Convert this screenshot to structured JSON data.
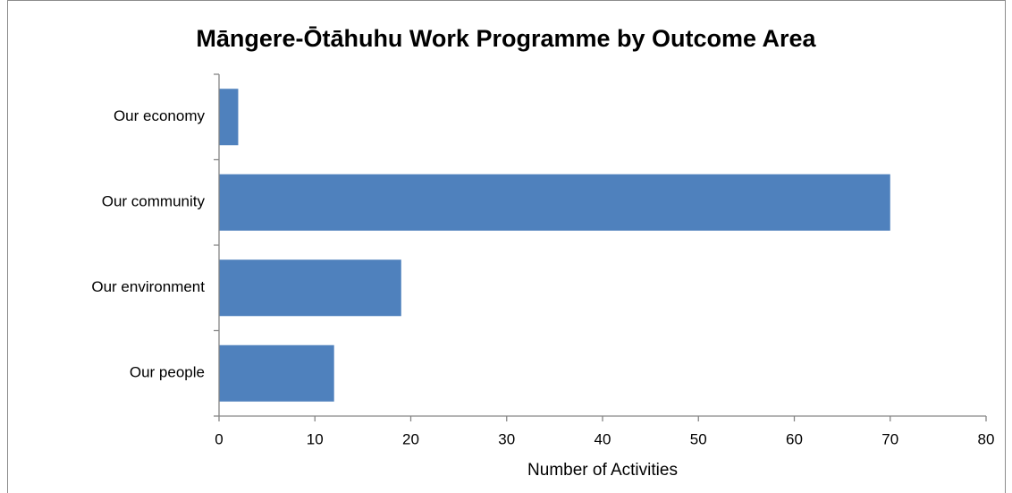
{
  "chart_data": {
    "type": "barh",
    "title": "Māngere-Ōtāhuhu Work Programme by Outcome Area",
    "categories": [
      "Our economy",
      "Our community",
      "Our environment",
      "Our people"
    ],
    "values": [
      2,
      70,
      19,
      12
    ],
    "color": "#4f81bd",
    "xlabel": "Number of Activities",
    "xlim": [
      0,
      80
    ],
    "xticks": [
      0,
      10,
      20,
      30,
      40,
      50,
      60,
      70,
      80
    ],
    "grid": false
  }
}
